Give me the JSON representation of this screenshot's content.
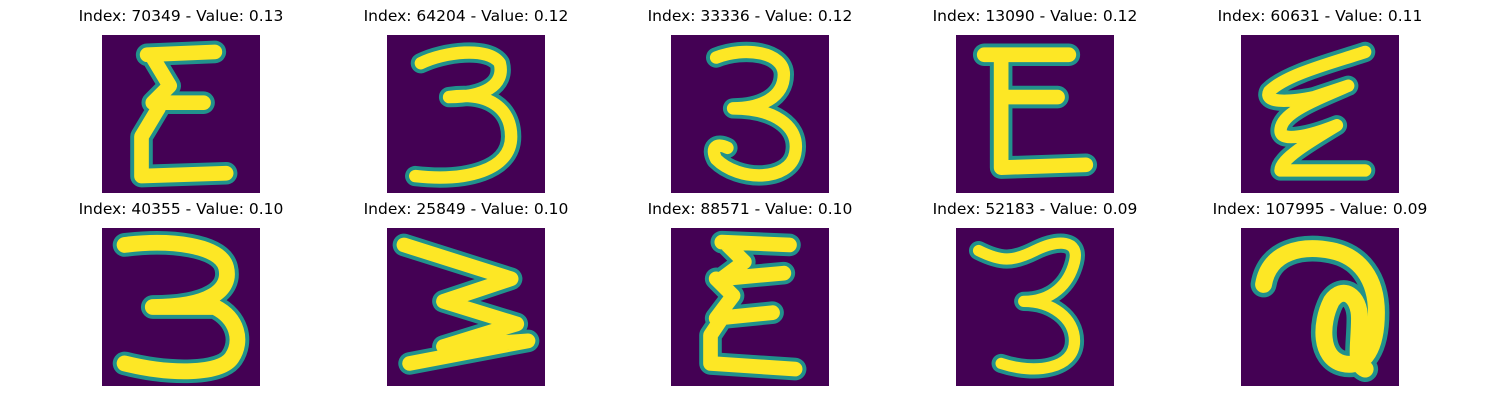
{
  "colors": {
    "background": "#440154",
    "stroke": "#fde725",
    "edge": "#21918c",
    "outer_edge": "#3b528b"
  },
  "panels": [
    {
      "label": "Index: 70349 - Value: 0.13",
      "glyph": "sigma"
    },
    {
      "label": "Index: 64204 - Value: 0.12",
      "glyph": "three"
    },
    {
      "label": "Index: 33336 - Value: 0.12",
      "glyph": "three-round"
    },
    {
      "label": "Index: 13090 - Value: 0.12",
      "glyph": "e-block"
    },
    {
      "label": "Index: 60631 - Value: 0.11",
      "glyph": "zigzag"
    },
    {
      "label": "Index: 40355 - Value: 0.10",
      "glyph": "three-wide"
    },
    {
      "label": "Index: 25849 - Value: 0.10",
      "glyph": "w-rotated"
    },
    {
      "label": "Index: 88571 - Value: 0.10",
      "glyph": "sigma-2"
    },
    {
      "label": "Index: 52183 - Value: 0.09",
      "glyph": "three-thin"
    },
    {
      "label": "Index: 107995 - Value: 0.09",
      "glyph": "a-loop"
    }
  ]
}
